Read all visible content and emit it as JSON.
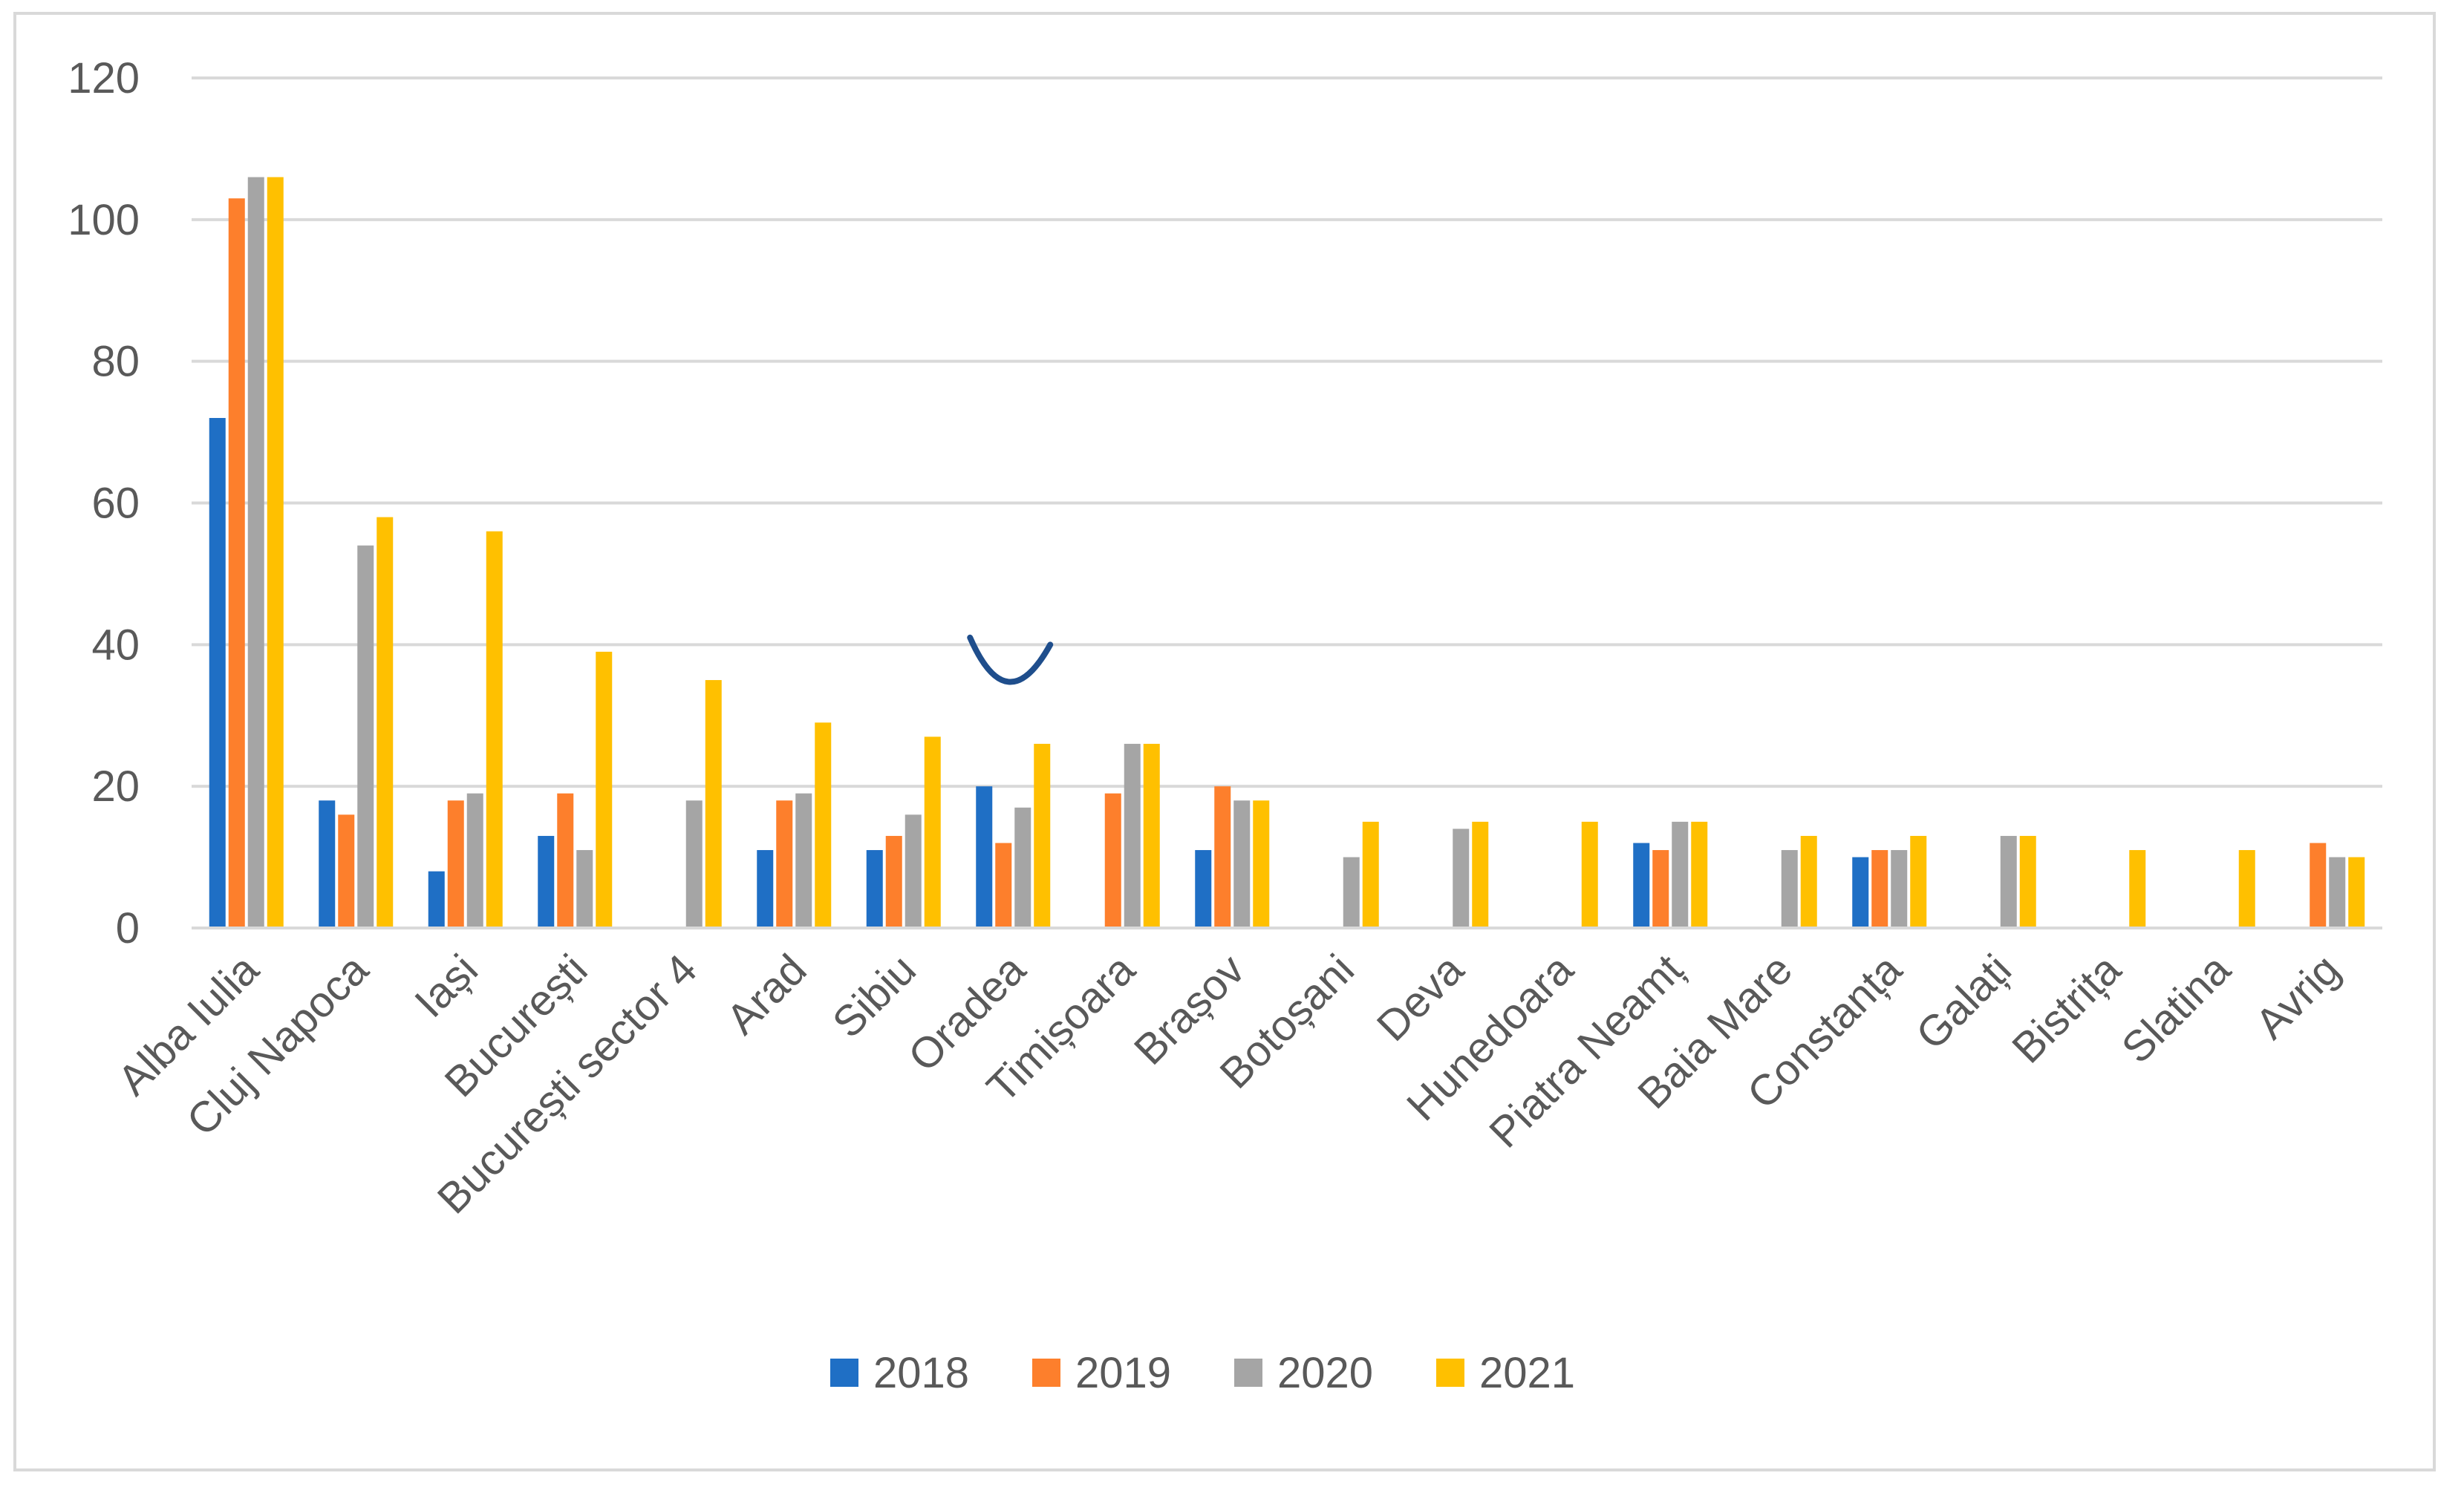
{
  "chart_data": {
    "type": "bar",
    "title": "",
    "xlabel": "",
    "ylabel": "",
    "ylim": [
      0,
      120
    ],
    "yticks": [
      0,
      20,
      40,
      60,
      80,
      100,
      120
    ],
    "grid": true,
    "legend_position": "bottom",
    "categories": [
      "Alba Iulia",
      "Cluj Napoca",
      "Iași",
      "București",
      "București sector 4",
      "Arad",
      "Sibiu",
      "Oradea",
      "Timișoara",
      "Brașov",
      "Botoșani",
      "Deva",
      "Hunedoara",
      "Piatra Neamț",
      "Baia Mare",
      "Constanța",
      "Galați",
      "Bistrița",
      "Slatina",
      "Avrig"
    ],
    "series": [
      {
        "name": "2018",
        "color": "#1f6fc5",
        "values": [
          72,
          18,
          8,
          13,
          0,
          11,
          11,
          20,
          0,
          11,
          0,
          0,
          0,
          12,
          0,
          10,
          0,
          0,
          0,
          0
        ]
      },
      {
        "name": "2019",
        "color": "#fd7f2c",
        "values": [
          103,
          16,
          18,
          19,
          0,
          18,
          13,
          12,
          19,
          20,
          0,
          0,
          0,
          11,
          0,
          11,
          0,
          0,
          0,
          12
        ]
      },
      {
        "name": "2020",
        "color": "#a5a5a5",
        "values": [
          106,
          54,
          19,
          11,
          18,
          19,
          16,
          17,
          26,
          18,
          10,
          14,
          0,
          15,
          11,
          11,
          13,
          0,
          0,
          10
        ]
      },
      {
        "name": "2021",
        "color": "#ffc000",
        "values": [
          106,
          58,
          56,
          39,
          35,
          29,
          27,
          26,
          26,
          18,
          15,
          15,
          15,
          15,
          13,
          13,
          13,
          11,
          11,
          10
        ]
      }
    ],
    "gridline_color": "#d9d9d9",
    "axis_color": "#d9d9d9",
    "annotation": {
      "type": "hand-drawn-curve",
      "color": "#1f4e8c",
      "near_category": "Oradea"
    }
  }
}
